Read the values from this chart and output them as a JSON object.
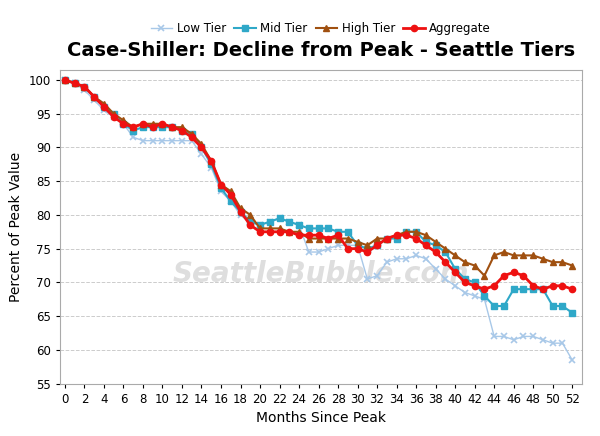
{
  "title": "Case-Shiller: Decline from Peak - Seattle Tiers",
  "xlabel": "Months Since Peak",
  "ylabel": "Percent of Peak Value",
  "watermark": "SeattleBubble.com",
  "xlim": [
    -0.5,
    53
  ],
  "ylim": [
    55,
    101.5
  ],
  "yticks": [
    55,
    60,
    65,
    70,
    75,
    80,
    85,
    90,
    95,
    100
  ],
  "xticks": [
    0,
    2,
    4,
    6,
    8,
    10,
    12,
    14,
    16,
    18,
    20,
    22,
    24,
    26,
    28,
    30,
    32,
    34,
    36,
    38,
    40,
    42,
    44,
    46,
    48,
    50,
    52
  ],
  "series": {
    "Low Tier": {
      "color": "#a8c8e8",
      "marker": "x",
      "linewidth": 1.0,
      "markersize": 4,
      "x": [
        0,
        1,
        2,
        3,
        4,
        5,
        6,
        7,
        8,
        9,
        10,
        11,
        12,
        13,
        14,
        15,
        16,
        17,
        18,
        19,
        20,
        21,
        22,
        23,
        24,
        25,
        26,
        27,
        28,
        29,
        30,
        31,
        32,
        33,
        34,
        35,
        36,
        37,
        38,
        39,
        40,
        41,
        42,
        43,
        44,
        45,
        46,
        47,
        48,
        49,
        50,
        51,
        52
      ],
      "y": [
        100,
        99.5,
        98.5,
        97.0,
        95.5,
        94.5,
        93.5,
        91.5,
        91.0,
        91.0,
        91.0,
        91.0,
        91.0,
        91.0,
        89.0,
        87.0,
        83.5,
        82.0,
        80.0,
        79.0,
        78.5,
        79.0,
        79.5,
        79.0,
        78.5,
        74.5,
        74.5,
        75.0,
        75.5,
        75.5,
        75.5,
        70.5,
        71.0,
        73.0,
        73.5,
        73.5,
        74.0,
        73.5,
        72.0,
        70.5,
        69.5,
        68.5,
        68.0,
        67.5,
        62.0,
        62.0,
        61.5,
        62.0,
        62.0,
        61.5,
        61.0,
        61.0,
        58.5
      ]
    },
    "Mid Tier": {
      "color": "#2fa8c8",
      "marker": "s",
      "linewidth": 1.5,
      "markersize": 4,
      "x": [
        0,
        1,
        2,
        3,
        4,
        5,
        6,
        7,
        8,
        9,
        10,
        11,
        12,
        13,
        14,
        15,
        16,
        17,
        18,
        19,
        20,
        21,
        22,
        23,
        24,
        25,
        26,
        27,
        28,
        29,
        30,
        31,
        32,
        33,
        34,
        35,
        36,
        37,
        38,
        39,
        40,
        41,
        42,
        43,
        44,
        45,
        46,
        47,
        48,
        49,
        50,
        51,
        52
      ],
      "y": [
        100,
        99.5,
        99.0,
        97.5,
        96.0,
        95.0,
        93.5,
        92.5,
        93.0,
        93.0,
        93.0,
        93.0,
        92.5,
        92.0,
        90.0,
        87.5,
        84.0,
        82.0,
        80.5,
        79.0,
        78.5,
        79.0,
        79.5,
        79.0,
        78.5,
        78.0,
        78.0,
        78.0,
        77.5,
        77.5,
        75.5,
        75.0,
        75.5,
        76.5,
        76.5,
        77.5,
        77.5,
        76.0,
        75.5,
        74.5,
        72.0,
        70.5,
        70.0,
        68.0,
        66.5,
        66.5,
        69.0,
        69.0,
        69.0,
        69.0,
        66.5,
        66.5,
        65.5
      ]
    },
    "High Tier": {
      "color": "#a05010",
      "marker": "^",
      "linewidth": 1.5,
      "markersize": 4,
      "x": [
        0,
        1,
        2,
        3,
        4,
        5,
        6,
        7,
        8,
        9,
        10,
        11,
        12,
        13,
        14,
        15,
        16,
        17,
        18,
        19,
        20,
        21,
        22,
        23,
        24,
        25,
        26,
        27,
        28,
        29,
        30,
        31,
        32,
        33,
        34,
        35,
        36,
        37,
        38,
        39,
        40,
        41,
        42,
        43,
        44,
        45,
        46,
        47,
        48,
        49,
        50,
        51,
        52
      ],
      "y": [
        100,
        99.5,
        99.0,
        97.5,
        96.5,
        95.0,
        94.0,
        93.0,
        93.5,
        93.5,
        93.5,
        93.0,
        93.0,
        92.0,
        90.5,
        88.0,
        84.5,
        83.5,
        81.0,
        80.0,
        78.0,
        78.0,
        78.0,
        77.5,
        77.5,
        76.5,
        76.5,
        76.5,
        76.5,
        76.5,
        76.0,
        75.5,
        76.5,
        76.5,
        77.0,
        77.5,
        77.5,
        77.0,
        76.0,
        75.0,
        74.0,
        73.0,
        72.5,
        71.0,
        74.0,
        74.5,
        74.0,
        74.0,
        74.0,
        73.5,
        73.0,
        73.0,
        72.5
      ]
    },
    "Aggregate": {
      "color": "#ee1111",
      "marker": "o",
      "linewidth": 2.0,
      "markersize": 4.5,
      "x": [
        0,
        1,
        2,
        3,
        4,
        5,
        6,
        7,
        8,
        9,
        10,
        11,
        12,
        13,
        14,
        15,
        16,
        17,
        18,
        19,
        20,
        21,
        22,
        23,
        24,
        25,
        26,
        27,
        28,
        29,
        30,
        31,
        32,
        33,
        34,
        35,
        36,
        37,
        38,
        39,
        40,
        41,
        42,
        43,
        44,
        45,
        46,
        47,
        48,
        49,
        50,
        51,
        52
      ],
      "y": [
        100,
        99.5,
        99.0,
        97.5,
        96.0,
        94.5,
        93.5,
        93.0,
        93.5,
        93.0,
        93.5,
        93.0,
        92.5,
        91.5,
        90.0,
        88.0,
        84.5,
        83.0,
        80.5,
        78.5,
        77.5,
        77.5,
        77.5,
        77.5,
        77.0,
        77.0,
        77.0,
        76.5,
        77.0,
        75.0,
        75.0,
        74.5,
        75.5,
        76.5,
        77.0,
        77.0,
        76.5,
        75.5,
        74.5,
        73.0,
        71.5,
        70.0,
        69.5,
        69.0,
        69.5,
        71.0,
        71.5,
        71.0,
        69.5,
        69.0,
        69.5,
        69.5,
        69.0
      ]
    }
  },
  "legend_order": [
    "Low Tier",
    "Mid Tier",
    "High Tier",
    "Aggregate"
  ],
  "background_color": "#ffffff",
  "grid_color": "#cccccc",
  "title_fontsize": 14,
  "axis_fontsize": 10,
  "tick_fontsize": 8.5,
  "legend_fontsize": 8.5
}
